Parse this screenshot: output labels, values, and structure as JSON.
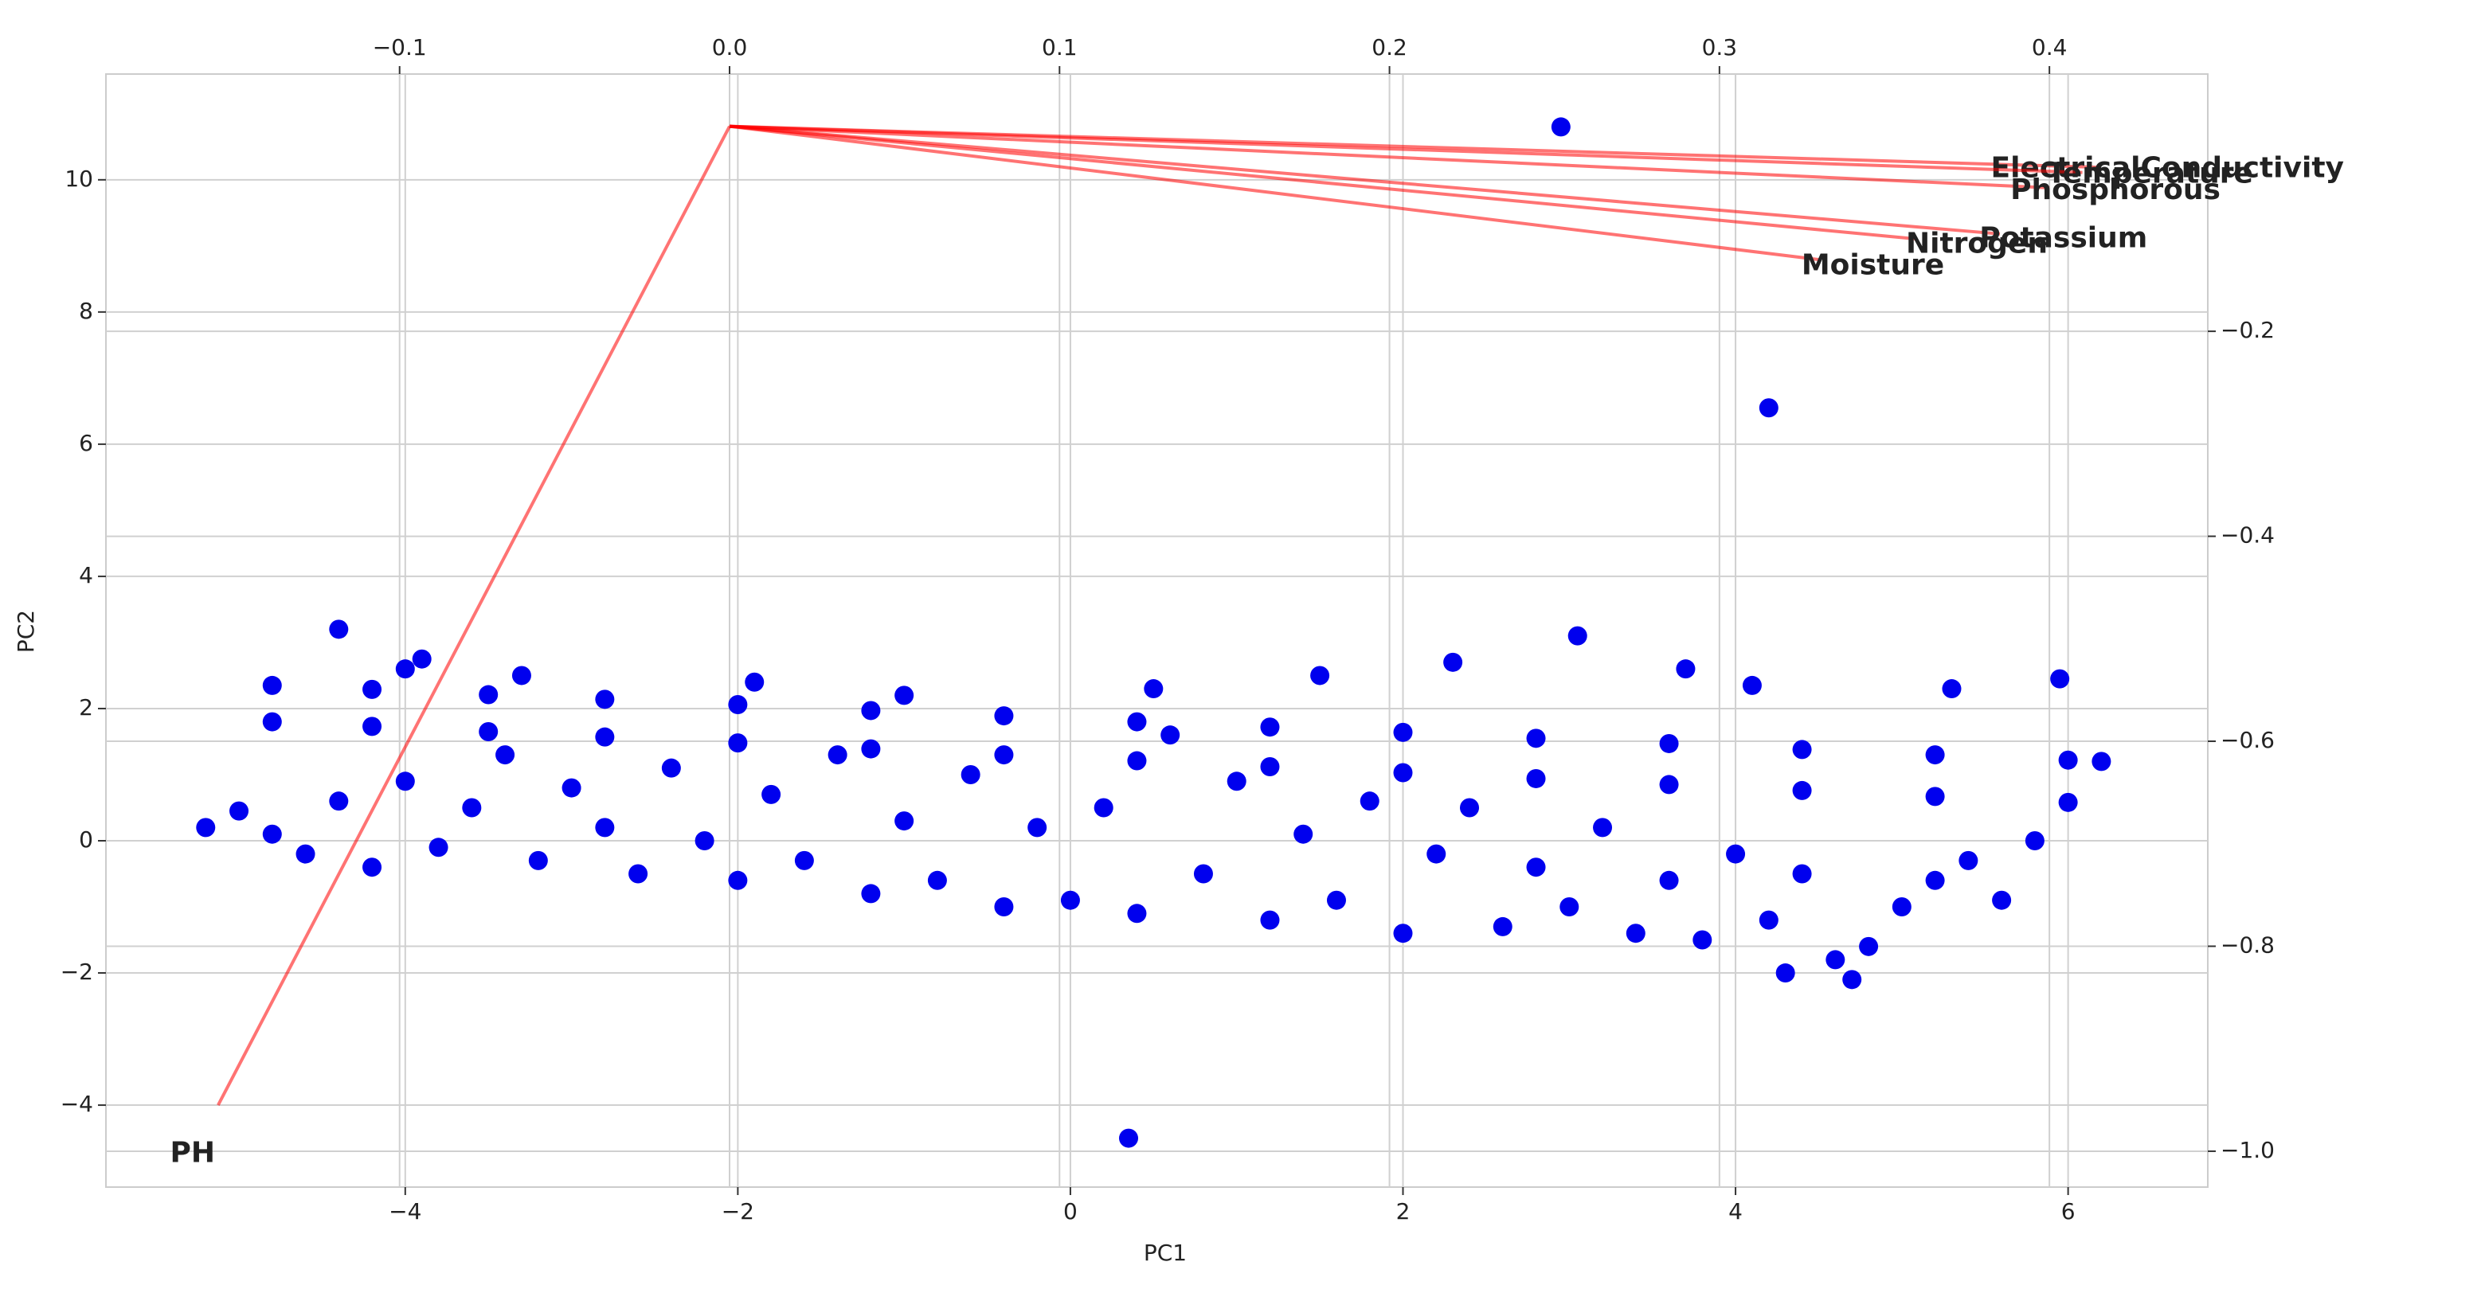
{
  "chart_data": {
    "type": "scatter",
    "xlabel": "PC1",
    "ylabel": "PC2",
    "xlim": [
      -5.8,
      6.84
    ],
    "ylim": [
      -5.24,
      11.6
    ],
    "xticks": [
      {
        "value": -4,
        "label": "−4"
      },
      {
        "value": -2,
        "label": "−2"
      },
      0,
      2,
      4,
      6
    ],
    "yticks": [
      {
        "value": -4,
        "label": "−4"
      },
      {
        "value": -2,
        "label": "−2"
      },
      0,
      2,
      4,
      6,
      8,
      10
    ],
    "x2lim": [
      -0.189,
      0.448
    ],
    "x2ticks": [
      {
        "value": -0.1,
        "label": "−0.1"
      },
      {
        "value": 0,
        "label": "0.0"
      },
      0.1,
      0.2,
      0.3,
      0.4
    ],
    "y2lim": [
      -1.035,
      0.051
    ],
    "y2ticks": [
      {
        "value": -1.0,
        "label": "−1.0"
      },
      {
        "value": -0.8,
        "label": "−0.8"
      },
      {
        "value": -0.6,
        "label": "−0.6"
      },
      {
        "value": -0.4,
        "label": "−0.4"
      },
      {
        "value": -0.2,
        "label": "−0.2"
      }
    ],
    "grid": true,
    "series": [
      {
        "color": "#0000ee",
        "x": [
          -4.8,
          -4.2,
          -3.5,
          -2.8,
          -2,
          -1.2,
          -0.4,
          0.4,
          1.2,
          2,
          2.8,
          3.6,
          4.4,
          5.2,
          6.0,
          6.2,
          -4.8,
          -4.2,
          -3.5,
          -2.8,
          -2,
          -1.2,
          -0.4,
          0.4,
          1.2,
          2,
          2.8,
          3.6,
          4.4,
          5.2,
          6.0,
          -5.2,
          -5.0,
          -4.8,
          -4.6,
          -4.4,
          -4.2,
          -4.0,
          -3.8,
          -3.6,
          -3.4,
          -3.2,
          -3.0,
          -2.8,
          -2.6,
          -2.4,
          -2.2,
          -2.0,
          -1.8,
          -1.6,
          -1.4,
          -1.2,
          -1.0,
          -0.8,
          -0.6,
          -0.4,
          -0.2,
          0.0,
          0.2,
          0.4,
          0.6,
          0.8,
          1.0,
          1.2,
          1.4,
          1.6,
          1.8,
          2.0,
          2.2,
          2.4,
          2.6,
          2.8,
          3.0,
          3.2,
          3.4,
          3.6,
          3.8,
          4.0,
          4.2,
          4.4,
          4.6,
          4.8,
          5.0,
          5.2,
          5.4,
          5.6,
          5.8,
          4.3,
          4.7,
          -1.0,
          0.5,
          1.5,
          2.3,
          3.7,
          4.1,
          5.3,
          -1.9,
          -3.3,
          -4.0,
          -3.9,
          2.95,
          4.2,
          0.35,
          -4.4,
          3.05,
          5.95
        ],
        "values": [
          2.35,
          2.29,
          2.21,
          2.14,
          2.06,
          1.97,
          1.89,
          1.8,
          1.72,
          1.64,
          1.55,
          1.47,
          1.38,
          1.3,
          1.22,
          1.2,
          1.8,
          1.73,
          1.65,
          1.57,
          1.48,
          1.39,
          1.3,
          1.21,
          1.12,
          1.03,
          0.94,
          0.85,
          0.76,
          0.67,
          0.58,
          0.2,
          0.45,
          0.1,
          -0.2,
          0.6,
          -0.4,
          0.9,
          -0.1,
          0.5,
          1.3,
          -0.3,
          0.8,
          0.2,
          -0.5,
          1.1,
          0.0,
          -0.6,
          0.7,
          -0.3,
          1.3,
          -0.8,
          0.3,
          -0.6,
          1.0,
          -1.0,
          0.2,
          -0.9,
          0.5,
          -1.1,
          1.6,
          -0.5,
          0.9,
          -1.2,
          0.1,
          -0.9,
          0.6,
          -1.4,
          -0.2,
          0.5,
          -1.3,
          -0.4,
          -1.0,
          0.2,
          -1.4,
          -0.6,
          -1.5,
          -0.2,
          -1.2,
          -0.5,
          -1.8,
          -1.6,
          -1.0,
          -0.6,
          -0.3,
          -0.9,
          0.0,
          -2.0,
          -2.1,
          2.2,
          2.3,
          2.5,
          2.7,
          2.6,
          2.35,
          2.3,
          2.4,
          2.5,
          2.6,
          2.75,
          10.8,
          6.55,
          -4.5,
          3.2,
          3.1,
          2.45
        ]
      }
    ],
    "loading_color": "#ff0000",
    "loading_label_color": "#008000",
    "loadings": [
      {
        "label": "ElectricalConductivity",
        "x": 0.415,
        "y": -0.04
      },
      {
        "label": "Temperature",
        "x": 0.41,
        "y": -0.045
      },
      {
        "label": "Phosphorous",
        "x": 0.4,
        "y": -0.06
      },
      {
        "label": "Potassium",
        "x": 0.385,
        "y": -0.105
      },
      {
        "label": "Nitrogen",
        "x": 0.36,
        "y": -0.11
      },
      {
        "label": "Moisture",
        "x": 0.33,
        "y": -0.13
      },
      {
        "label": "PH",
        "x": -0.155,
        "y": -0.955
      }
    ]
  }
}
